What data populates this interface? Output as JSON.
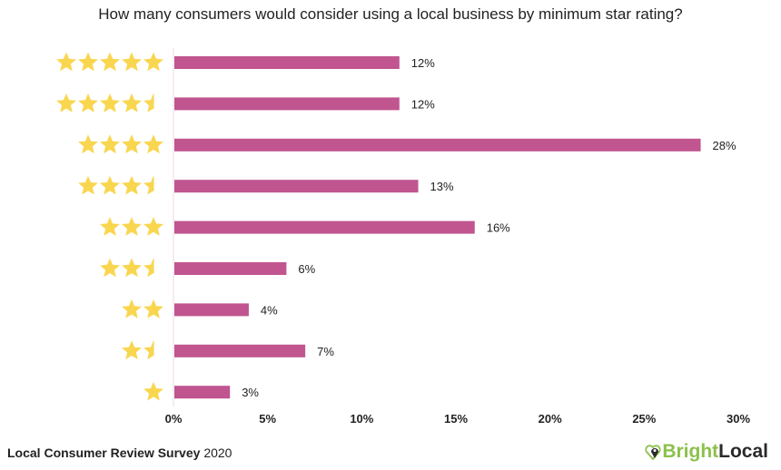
{
  "chart_data": {
    "type": "bar",
    "orientation": "horizontal",
    "title": "How many consumers would consider using a local business by minimum star rating?",
    "categories": [
      5,
      4.5,
      4,
      3.5,
      3,
      2.5,
      2,
      1.5,
      1
    ],
    "category_display": "star-icons",
    "values": [
      12,
      12,
      28,
      13,
      16,
      6,
      4,
      7,
      3
    ],
    "data_labels": [
      "12%",
      "12%",
      "28%",
      "13%",
      "16%",
      "6%",
      "4%",
      "7%",
      "3%"
    ],
    "x_ticks": [
      "0%",
      "5%",
      "10%",
      "15%",
      "20%",
      "25%",
      "30%"
    ],
    "xlim": [
      0,
      30
    ],
    "grid": false,
    "bar_color": "#c0558f",
    "star_color": "#f9d64f"
  },
  "footer": {
    "survey_name": "Local Consumer Review Survey",
    "year": "2020"
  },
  "logo": {
    "part1": "Bright",
    "part2": "Local",
    "icon": "map-pin-heart-icon"
  }
}
